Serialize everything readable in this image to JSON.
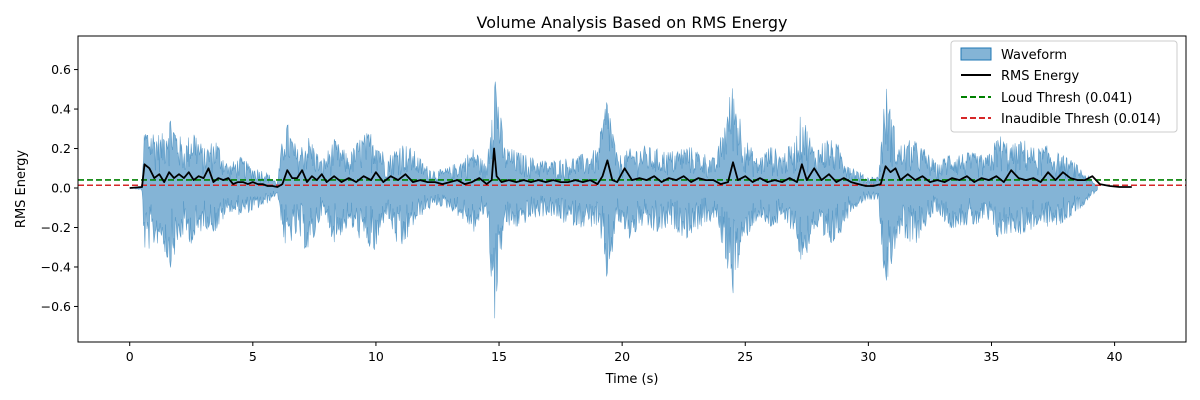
{
  "chart_data": {
    "type": "line",
    "title": "Volume Analysis Based on RMS Energy",
    "xlabel": "Time (s)",
    "ylabel": "RMS Energy",
    "xlim": [
      -2.1,
      42.9
    ],
    "ylim": [
      -0.78,
      0.77
    ],
    "xticks": [
      0,
      5,
      10,
      15,
      20,
      25,
      30,
      35,
      40
    ],
    "yticks": [
      -0.6,
      -0.4,
      -0.2,
      0.0,
      0.2,
      0.4,
      0.6
    ],
    "xtick_labels": [
      "0",
      "5",
      "10",
      "15",
      "20",
      "25",
      "30",
      "35",
      "40"
    ],
    "ytick_labels": [
      "−0.6",
      "−0.4",
      "−0.2",
      "0.0",
      "0.2",
      "0.4",
      "0.6"
    ],
    "grid": false,
    "legend_position": "top-right",
    "series": [
      {
        "name": "Waveform",
        "kind": "filled-waveform",
        "color": "#1f77b4",
        "duration_s": 39.3,
        "envelope": {
          "x": [
            0,
            0.5,
            0.6,
            1.0,
            1.3,
            1.6,
            2.2,
            2.6,
            3.0,
            3.5,
            4.0,
            4.5,
            5.0,
            5.5,
            6.0,
            6.3,
            6.8,
            7.3,
            7.8,
            8.3,
            8.9,
            9.4,
            10.0,
            10.4,
            11.0,
            11.5,
            12.0,
            12.5,
            13.0,
            13.5,
            14.0,
            14.5,
            14.8,
            15.2,
            15.7,
            16.3,
            17.0,
            17.6,
            18.3,
            19.0,
            19.4,
            19.8,
            20.3,
            20.8,
            21.4,
            22.0,
            22.6,
            23.2,
            23.8,
            24.5,
            25.0,
            25.5,
            26.0,
            26.5,
            27.0,
            27.3,
            27.8,
            28.3,
            28.8,
            29.3,
            29.9,
            30.4,
            30.7,
            31.2,
            31.8,
            32.3,
            32.8,
            33.3,
            33.8,
            34.3,
            34.8,
            35.3,
            35.8,
            36.3,
            36.8,
            37.2,
            37.7,
            38.3,
            38.8,
            39.3
          ],
          "upper": [
            0,
            0.01,
            0.33,
            0.3,
            0.27,
            0.4,
            0.22,
            0.32,
            0.2,
            0.26,
            0.12,
            0.16,
            0.11,
            0.09,
            0.03,
            0.37,
            0.2,
            0.27,
            0.14,
            0.25,
            0.17,
            0.27,
            0.3,
            0.15,
            0.24,
            0.2,
            0.12,
            0.09,
            0.11,
            0.15,
            0.21,
            0.11,
            0.69,
            0.22,
            0.19,
            0.16,
            0.14,
            0.15,
            0.17,
            0.2,
            0.5,
            0.16,
            0.2,
            0.22,
            0.2,
            0.19,
            0.22,
            0.19,
            0.15,
            0.55,
            0.26,
            0.15,
            0.22,
            0.18,
            0.24,
            0.4,
            0.2,
            0.26,
            0.22,
            0.12,
            0.06,
            0.06,
            0.54,
            0.22,
            0.25,
            0.2,
            0.12,
            0.19,
            0.18,
            0.18,
            0.16,
            0.28,
            0.22,
            0.25,
            0.2,
            0.22,
            0.18,
            0.14,
            0.08,
            0.01
          ],
          "lower": [
            0,
            -0.01,
            -0.33,
            -0.3,
            -0.27,
            -0.42,
            -0.24,
            -0.3,
            -0.2,
            -0.23,
            -0.12,
            -0.14,
            -0.12,
            -0.09,
            -0.03,
            -0.31,
            -0.25,
            -0.35,
            -0.13,
            -0.28,
            -0.2,
            -0.27,
            -0.35,
            -0.13,
            -0.35,
            -0.2,
            -0.12,
            -0.09,
            -0.11,
            -0.16,
            -0.23,
            -0.11,
            -0.7,
            -0.2,
            -0.21,
            -0.16,
            -0.14,
            -0.18,
            -0.2,
            -0.2,
            -0.5,
            -0.17,
            -0.27,
            -0.2,
            -0.24,
            -0.2,
            -0.26,
            -0.2,
            -0.16,
            -0.54,
            -0.27,
            -0.16,
            -0.21,
            -0.18,
            -0.22,
            -0.42,
            -0.22,
            -0.34,
            -0.25,
            -0.12,
            -0.06,
            -0.06,
            -0.54,
            -0.24,
            -0.32,
            -0.2,
            -0.12,
            -0.21,
            -0.19,
            -0.2,
            -0.17,
            -0.27,
            -0.23,
            -0.24,
            -0.2,
            -0.2,
            -0.2,
            -0.14,
            -0.08,
            -0.01
          ]
        }
      },
      {
        "name": "RMS Energy",
        "kind": "line",
        "color": "#000000",
        "x": [
          0,
          0.5,
          0.6,
          0.8,
          1.0,
          1.2,
          1.4,
          1.6,
          1.8,
          2.0,
          2.2,
          2.4,
          2.6,
          2.8,
          3.0,
          3.2,
          3.4,
          3.6,
          3.8,
          4.0,
          4.2,
          4.4,
          4.6,
          4.8,
          5.0,
          5.2,
          5.4,
          5.6,
          5.8,
          6.0,
          6.2,
          6.4,
          6.6,
          6.8,
          7.0,
          7.2,
          7.4,
          7.6,
          7.8,
          8.0,
          8.3,
          8.6,
          8.9,
          9.2,
          9.5,
          9.8,
          10.0,
          10.3,
          10.6,
          10.9,
          11.2,
          11.5,
          11.8,
          12.1,
          12.4,
          12.7,
          13.0,
          13.3,
          13.6,
          13.9,
          14.2,
          14.5,
          14.7,
          14.8,
          14.9,
          15.1,
          15.4,
          15.7,
          16.0,
          16.3,
          16.6,
          16.9,
          17.2,
          17.5,
          17.8,
          18.1,
          18.4,
          18.7,
          19.0,
          19.2,
          19.4,
          19.6,
          19.8,
          20.1,
          20.4,
          20.7,
          21.0,
          21.3,
          21.6,
          21.9,
          22.2,
          22.5,
          22.8,
          23.1,
          23.4,
          23.7,
          24.0,
          24.3,
          24.5,
          24.7,
          25.0,
          25.3,
          25.6,
          25.9,
          26.2,
          26.5,
          26.8,
          27.1,
          27.3,
          27.5,
          27.8,
          28.1,
          28.4,
          28.7,
          29.0,
          29.3,
          29.6,
          29.9,
          30.2,
          30.5,
          30.7,
          30.9,
          31.1,
          31.3,
          31.6,
          31.9,
          32.2,
          32.5,
          32.8,
          33.1,
          33.4,
          33.7,
          34.0,
          34.3,
          34.6,
          34.9,
          35.2,
          35.5,
          35.8,
          36.1,
          36.4,
          36.7,
          37.0,
          37.3,
          37.6,
          37.9,
          38.2,
          38.5,
          38.8,
          39.1,
          39.4,
          39.8,
          40.2,
          40.7
        ],
        "y": [
          0.0,
          0.005,
          0.12,
          0.1,
          0.05,
          0.07,
          0.03,
          0.08,
          0.05,
          0.07,
          0.05,
          0.08,
          0.04,
          0.06,
          0.05,
          0.1,
          0.03,
          0.05,
          0.04,
          0.05,
          0.02,
          0.03,
          0.03,
          0.02,
          0.03,
          0.02,
          0.02,
          0.01,
          0.01,
          0.005,
          0.02,
          0.09,
          0.05,
          0.05,
          0.09,
          0.03,
          0.06,
          0.04,
          0.07,
          0.03,
          0.06,
          0.03,
          0.05,
          0.03,
          0.06,
          0.04,
          0.08,
          0.03,
          0.06,
          0.04,
          0.07,
          0.03,
          0.04,
          0.03,
          0.03,
          0.02,
          0.03,
          0.04,
          0.02,
          0.03,
          0.05,
          0.02,
          0.04,
          0.2,
          0.06,
          0.03,
          0.04,
          0.03,
          0.04,
          0.03,
          0.04,
          0.03,
          0.04,
          0.03,
          0.03,
          0.04,
          0.03,
          0.04,
          0.02,
          0.06,
          0.14,
          0.04,
          0.03,
          0.1,
          0.04,
          0.05,
          0.04,
          0.06,
          0.03,
          0.05,
          0.04,
          0.06,
          0.03,
          0.05,
          0.04,
          0.04,
          0.02,
          0.03,
          0.13,
          0.04,
          0.06,
          0.03,
          0.05,
          0.03,
          0.04,
          0.03,
          0.05,
          0.03,
          0.12,
          0.04,
          0.1,
          0.04,
          0.07,
          0.03,
          0.05,
          0.03,
          0.02,
          0.01,
          0.01,
          0.02,
          0.11,
          0.08,
          0.1,
          0.04,
          0.07,
          0.04,
          0.06,
          0.03,
          0.04,
          0.03,
          0.05,
          0.04,
          0.06,
          0.03,
          0.05,
          0.04,
          0.06,
          0.03,
          0.09,
          0.05,
          0.04,
          0.05,
          0.03,
          0.08,
          0.04,
          0.08,
          0.05,
          0.04,
          0.04,
          0.06,
          0.02,
          0.01,
          0.005,
          0.005
        ]
      },
      {
        "name": "Loud Thresh (0.041)",
        "kind": "hline",
        "y": 0.041,
        "color": "#008000",
        "style": "dashed"
      },
      {
        "name": "Inaudible Thresh (0.014)",
        "kind": "hline",
        "y": 0.014,
        "color": "#d62728",
        "style": "dashed"
      }
    ]
  }
}
